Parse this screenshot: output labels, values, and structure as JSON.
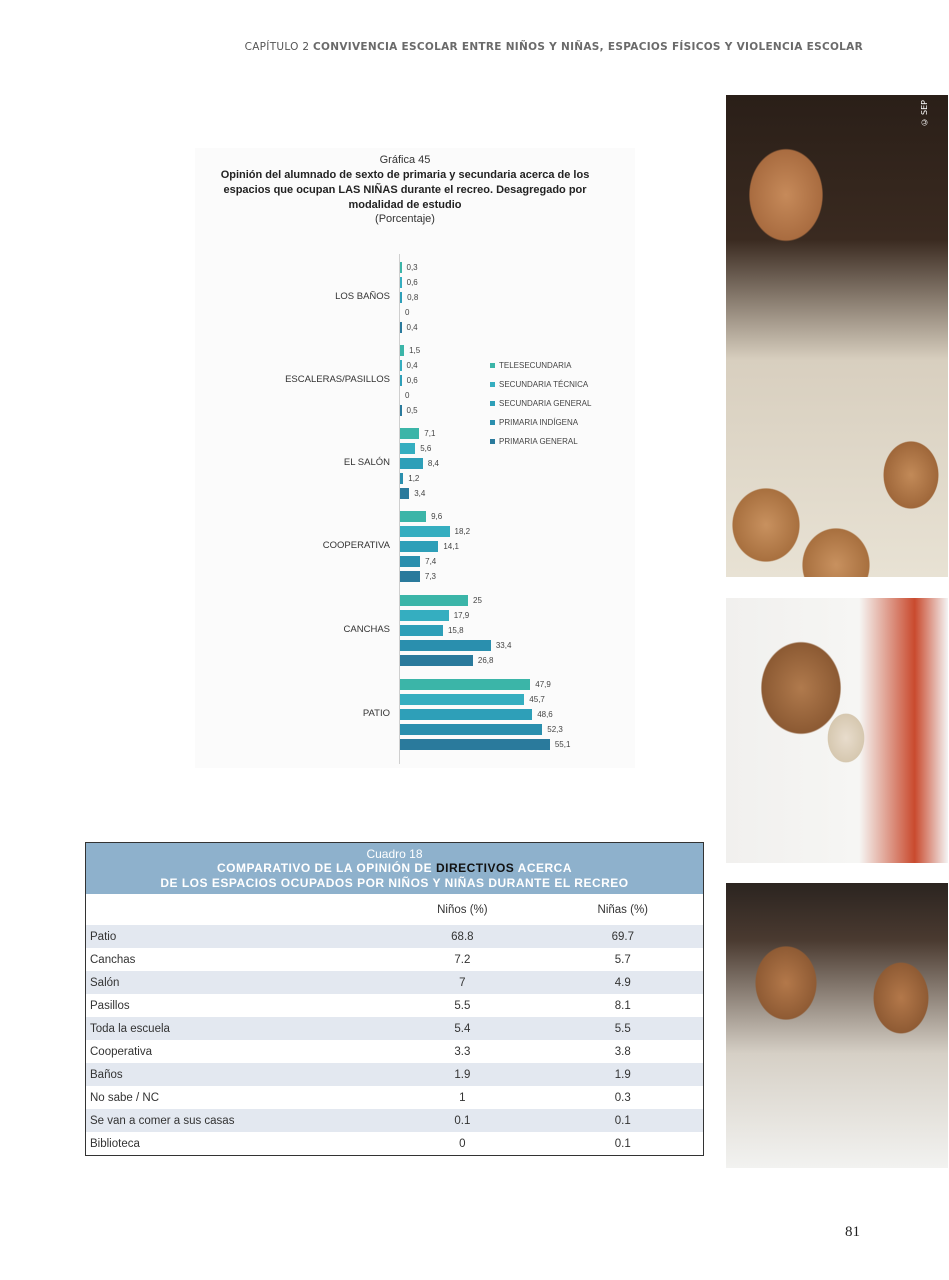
{
  "running_head": {
    "chapter": "CAPÍTULO 2",
    "title": "CONVIVENCIA ESCOLAR ENTRE NIÑOS Y NIÑAS, ESPACIOS FÍSICOS Y VIOLENCIA ESCOLAR"
  },
  "figure": {
    "number": "Gráfica 45",
    "title_lines": [
      "Opinión del alumnado de sexto de primaria y secundaria acerca de los",
      "espacios que ocupan LAS NIÑAS durante el recreo. Desagregado por",
      "modalidad de estudio"
    ],
    "unit": "(Porcentaje)"
  },
  "chart_data": {
    "type": "bar",
    "orientation": "horizontal",
    "title": "Opinión del alumnado de sexto de primaria y secundaria acerca de los espacios que ocupan LAS NIÑAS durante el recreo. Desagregado por modalidad de estudio",
    "subtitle": "(Porcentaje)",
    "xlabel": "",
    "ylabel": "",
    "xlim": [
      0,
      60
    ],
    "grid": false,
    "legend_position": "right",
    "categories": [
      "LOS BAÑOS",
      "ESCALERAS/PASILLOS",
      "EL SALÓN",
      "COOPERATIVA",
      "CANCHAS",
      "PATIO"
    ],
    "series": [
      {
        "name": "TELESECUNDARIA",
        "color": "#3bb5a8",
        "values": [
          0.3,
          1.5,
          7.1,
          9.6,
          25,
          47.9
        ],
        "labels": [
          "0,3",
          "1,5",
          "7,1",
          "9,6",
          "25",
          "47,9"
        ]
      },
      {
        "name": "SECUNDARIA TÉCNICA",
        "color": "#35aec0",
        "values": [
          0.6,
          0.4,
          5.6,
          18.2,
          17.9,
          45.7
        ],
        "labels": [
          "0,6",
          "0,4",
          "5,6",
          "18,2",
          "17,9",
          "45,7"
        ]
      },
      {
        "name": "SECUNDARIA GENERAL",
        "color": "#2e9fb8",
        "values": [
          0.8,
          0.6,
          8.4,
          14.1,
          15.8,
          48.6
        ],
        "labels": [
          "0,8",
          "0,6",
          "8,4",
          "14,1",
          "15,8",
          "48,6"
        ]
      },
      {
        "name": "PRIMARIA INDÍGENA",
        "color": "#2a8fae",
        "values": [
          0,
          0,
          1.2,
          7.4,
          33.4,
          52.3
        ],
        "labels": [
          "0",
          "0",
          "1,2",
          "7,4",
          "33,4",
          "52,3"
        ]
      },
      {
        "name": "PRIMARIA GENERAL",
        "color": "#2a7a9c",
        "values": [
          0.4,
          0.5,
          3.4,
          7.3,
          26.8,
          55.1
        ],
        "labels": [
          "0,4",
          "0,5",
          "3,4",
          "7,3",
          "26,8",
          "55,1"
        ]
      }
    ]
  },
  "table": {
    "caption": "Cuadro 18",
    "title_pre": "COMPARATIVO DE LA OPINIÓN DE ",
    "title_highlight": "DIRECTIVOS",
    "title_post": " ACERCA",
    "title_line2": "DE LOS ESPACIOS OCUPADOS POR NIÑOS Y NIÑAS DURANTE EL RECREO",
    "columns": [
      "",
      "Niños (%)",
      "Niñas (%)"
    ],
    "rows": [
      {
        "label": "Patio",
        "ninos": "68.8",
        "ninas": "69.7"
      },
      {
        "label": "Canchas",
        "ninos": "7.2",
        "ninas": "5.7"
      },
      {
        "label": "Salón",
        "ninos": "7",
        "ninas": "4.9"
      },
      {
        "label": "Pasillos",
        "ninos": "5.5",
        "ninas": "8.1"
      },
      {
        "label": "Toda la escuela",
        "ninos": "5.4",
        "ninas": "5.5"
      },
      {
        "label": "Cooperativa",
        "ninos": "3.3",
        "ninas": "3.8"
      },
      {
        "label": "Baños",
        "ninos": "1.9",
        "ninas": "1.9"
      },
      {
        "label": "No sabe / NC",
        "ninos": "1",
        "ninas": "0.3"
      },
      {
        "label": "Se van a comer a sus casas",
        "ninos": "0.1",
        "ninas": "0.1"
      },
      {
        "label": "Biblioteca",
        "ninos": "0",
        "ninas": "0.1"
      }
    ]
  },
  "photos": {
    "credit": "© SEP"
  },
  "page_number": "81"
}
